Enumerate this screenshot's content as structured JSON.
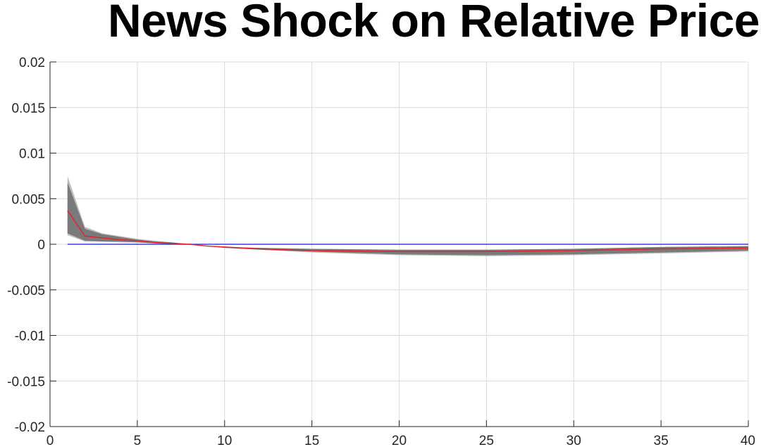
{
  "chart_data": {
    "type": "line",
    "title": "News Shock on Relative Price",
    "xlabel": "",
    "ylabel": "",
    "xlim": [
      0,
      40
    ],
    "ylim": [
      -0.02,
      0.02
    ],
    "grid": true,
    "x_ticks": [
      0,
      5,
      10,
      15,
      20,
      25,
      30,
      35,
      40
    ],
    "x_tick_labels": [
      "0",
      "5",
      "10",
      "15",
      "20",
      "25",
      "30",
      "35",
      "40"
    ],
    "y_ticks": [
      0.02,
      0.015,
      0.01,
      0.005,
      0,
      -0.005,
      -0.01,
      -0.015,
      -0.02
    ],
    "y_tick_labels": [
      "0.02",
      "0.015",
      "0.01",
      "0.005",
      "0",
      "-0.005",
      "-0.01",
      "-0.015",
      "-0.02"
    ],
    "x": [
      1,
      2,
      3,
      4,
      5,
      6,
      7,
      8,
      9,
      10,
      12,
      15,
      20,
      25,
      30,
      35,
      40
    ],
    "series": [
      {
        "role": "outer-band-upper",
        "color": "#bdbdbd",
        "values": [
          0.0075,
          0.0019,
          0.0012,
          0.0009,
          0.0006,
          0.0004,
          0.0002,
          0.0,
          -0.0002,
          -0.0003,
          -0.0004,
          -0.0005,
          -0.0006,
          -0.0006,
          -0.0005,
          -0.0003,
          -0.0002
        ]
      },
      {
        "role": "outer-band-lower",
        "color": "#bdbdbd",
        "values": [
          0.001,
          0.0003,
          0.0003,
          0.0002,
          0.0002,
          0.0001,
          0.0,
          0.0,
          -0.0002,
          -0.0004,
          -0.0006,
          -0.0009,
          -0.0012,
          -0.0013,
          -0.0012,
          -0.001,
          -0.0008
        ]
      },
      {
        "role": "inner-band-upper",
        "color": "#7a7a7a",
        "values": [
          0.0068,
          0.0017,
          0.0011,
          0.0008,
          0.0005,
          0.0003,
          0.0002,
          0.0,
          -0.0002,
          -0.0003,
          -0.0004,
          -0.0005,
          -0.0006,
          -0.0006,
          -0.0005,
          -0.0003,
          -0.0002
        ]
      },
      {
        "role": "inner-band-lower",
        "color": "#7a7a7a",
        "values": [
          0.0012,
          0.0004,
          0.0003,
          0.0003,
          0.0002,
          0.0001,
          0.0,
          0.0,
          -0.0002,
          -0.0004,
          -0.0006,
          -0.0008,
          -0.0011,
          -0.0012,
          -0.0011,
          -0.0009,
          -0.0007
        ]
      },
      {
        "role": "median",
        "color": "#e8202a",
        "values": [
          0.0037,
          0.0009,
          0.0007,
          0.0005,
          0.0004,
          0.0002,
          0.0001,
          0.0,
          -0.0002,
          -0.0003,
          -0.0005,
          -0.0007,
          -0.0008,
          -0.0008,
          -0.0007,
          -0.0005,
          -0.0004
        ]
      },
      {
        "role": "zero-line",
        "color": "#3f3fd9",
        "values": [
          0,
          0,
          0,
          0,
          0,
          0,
          0,
          0,
          0,
          0,
          0,
          0,
          0,
          0,
          0,
          0,
          0
        ]
      }
    ]
  }
}
